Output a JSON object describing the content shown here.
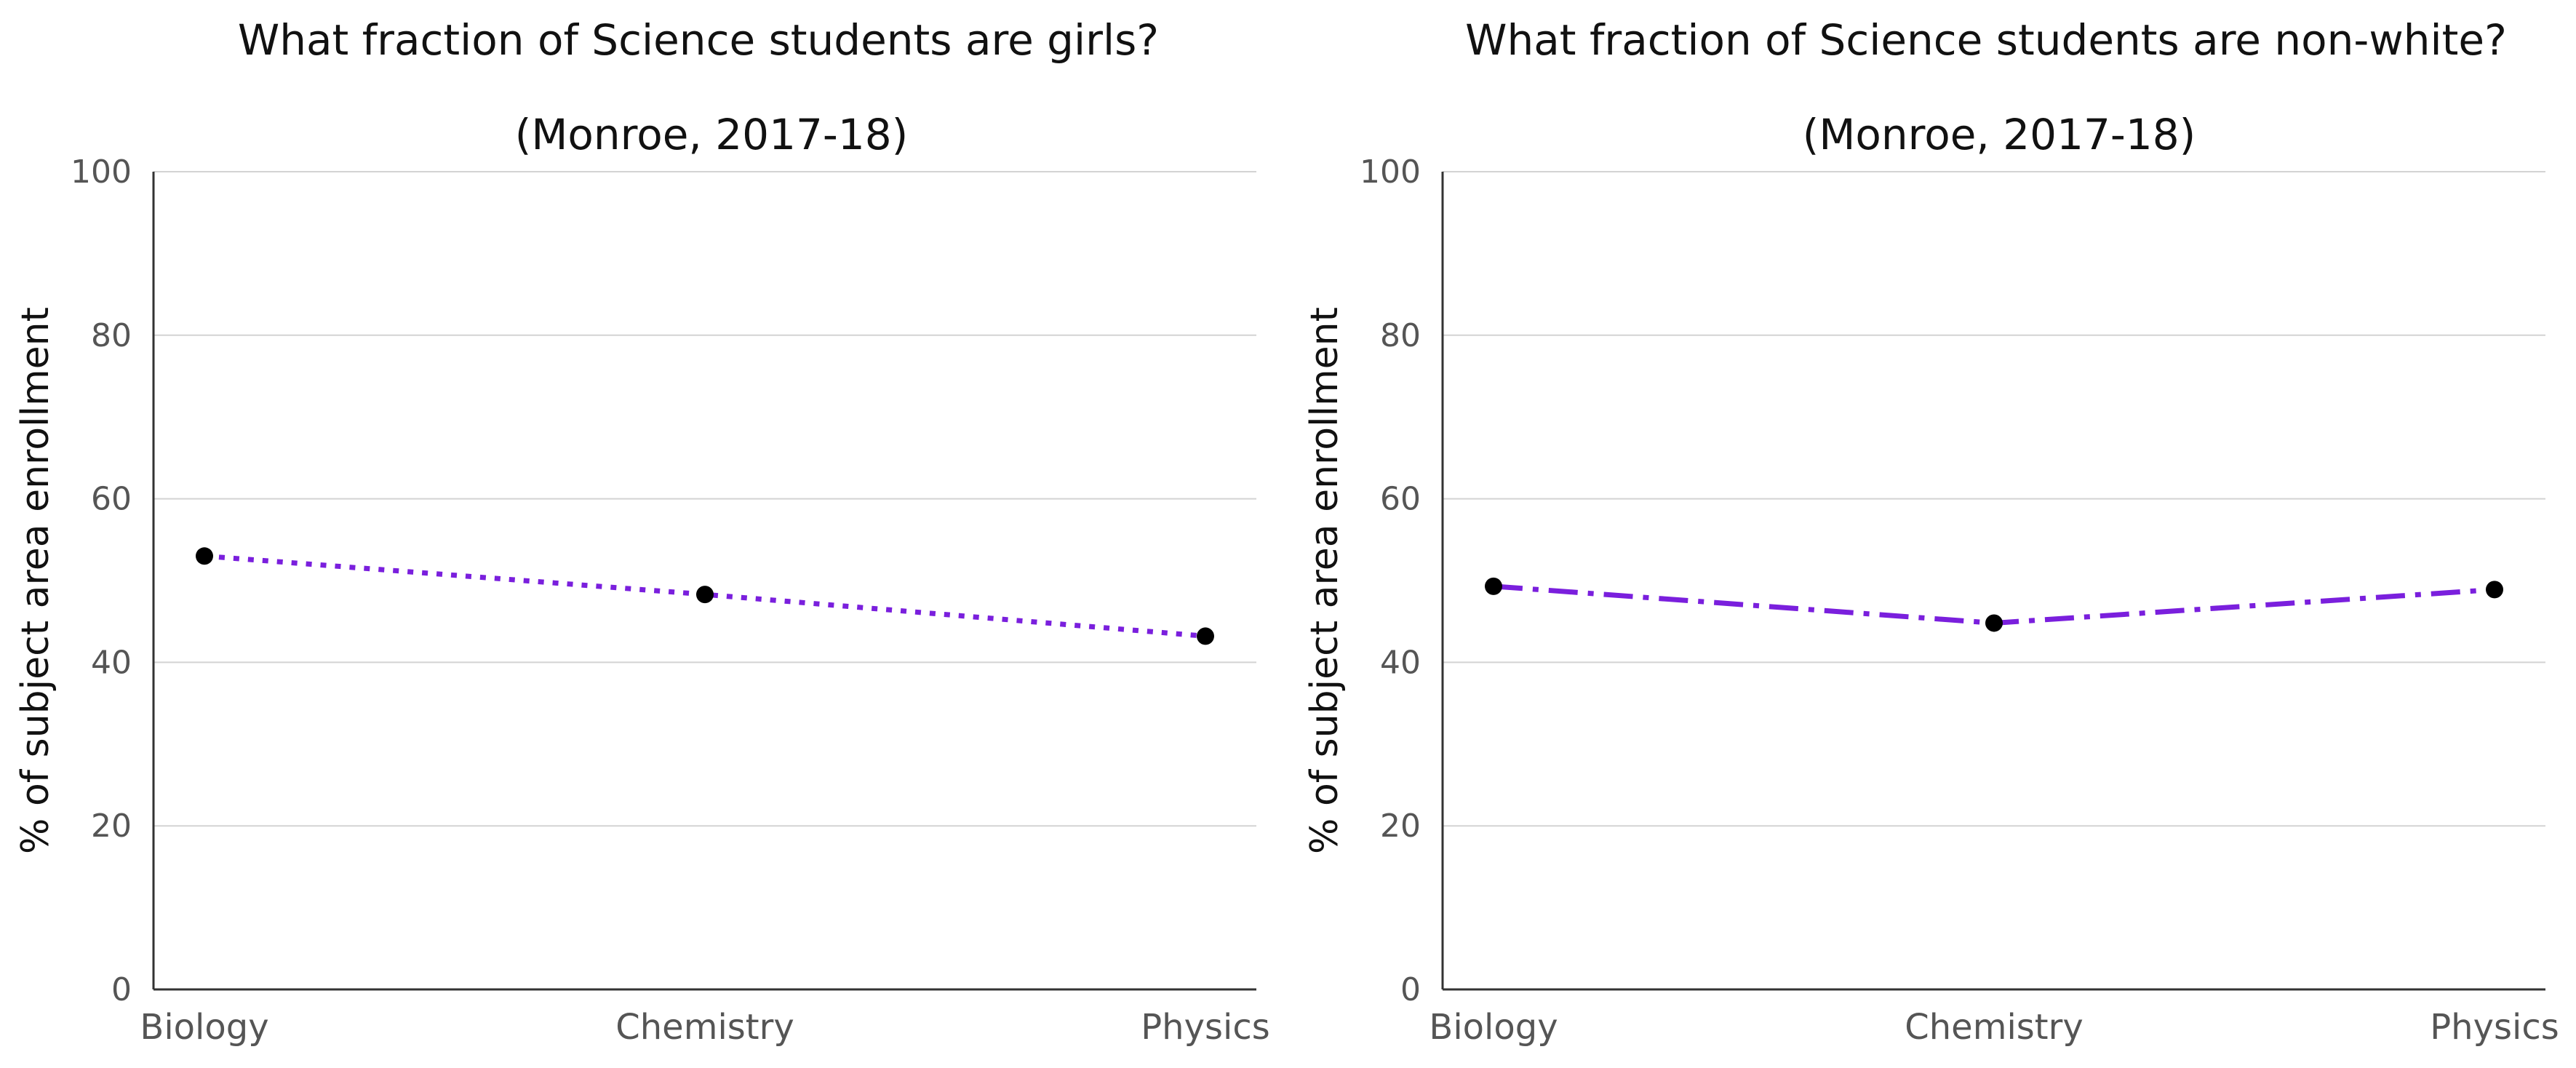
{
  "colors": {
    "line": "#7a1fdd",
    "marker": "#000000",
    "grid": "#d3d3d3",
    "axis": "#333333",
    "tick_text": "#555555"
  },
  "chart_data": [
    {
      "type": "line",
      "title": "What fraction of Science students are girls?",
      "subtitle": "(Monroe, 2017-18)",
      "xlabel": "",
      "ylabel": "% of subject area enrollment",
      "categories": [
        "Biology",
        "Chemistry",
        "Physics"
      ],
      "series": [
        {
          "values": [
            53.0,
            48.3,
            43.2
          ],
          "line_style": "dotted"
        }
      ],
      "ylim": [
        0,
        100
      ],
      "yticks": [
        0,
        20,
        40,
        60,
        80,
        100
      ],
      "grid": "horizontal",
      "legend": "none"
    },
    {
      "type": "line",
      "title": "What fraction of Science students are non-white?",
      "subtitle": "(Monroe, 2017-18)",
      "xlabel": "",
      "ylabel": "% of subject area enrollment",
      "categories": [
        "Biology",
        "Chemistry",
        "Physics"
      ],
      "series": [
        {
          "values": [
            49.3,
            44.8,
            48.9
          ],
          "line_style": "dashdot"
        }
      ],
      "ylim": [
        0,
        100
      ],
      "yticks": [
        0,
        20,
        40,
        60,
        80,
        100
      ],
      "grid": "horizontal",
      "legend": "none"
    }
  ]
}
